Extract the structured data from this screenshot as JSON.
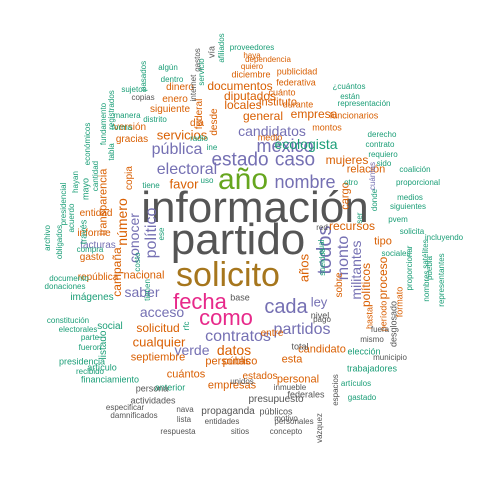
{
  "palette": [
    "#1b9e77",
    "#d95f02",
    "#7570b3",
    "#e7298a",
    "#66a61e",
    "#a6761d",
    "#555555"
  ],
  "words": [
    "información",
    "partido",
    "solicito",
    "año",
    "fecha",
    "como",
    "cada",
    "méxico",
    "estado",
    "caso",
    "nombre",
    "pública",
    "electoral",
    "candidatos",
    "contratos",
    "partidos",
    "verde",
    "datos",
    "todos",
    "monto",
    "militantes",
    "acceso",
    "saber",
    "político",
    "conocer",
    "número",
    "cualquier",
    "solicitud",
    "ecologista",
    "servicios",
    "mujeres",
    "ley",
    "años",
    "favor",
    "recursos",
    "proceso",
    "políticos",
    "documentos",
    "diputados",
    "empresa",
    "general",
    "locales",
    "instituto",
    "campaña",
    "transparencia",
    "nacional",
    "septiembre",
    "personas",
    "candidato",
    "cargo",
    "tipo",
    "relación",
    "público",
    "empresas",
    "cuántos",
    "esta",
    "personal",
    "presupuesto",
    "propaganda",
    "gastos",
    "federal",
    "desde",
    "siguiente",
    "enero",
    "dinero",
    "día",
    "gracias",
    "versión",
    "copia",
    "entidad",
    "informe",
    "facturas",
    "gasto",
    "república",
    "imágenes",
    "social",
    "listado",
    "artículo",
    "anterior",
    "estados",
    "entre",
    "medio",
    "montos",
    "diciembre",
    "publicidad",
    "federativa",
    "cuánto",
    "durante",
    "funcionarios",
    "representación",
    "proveedores",
    "dependencia",
    "haya",
    "quiero",
    "vía",
    "base",
    "nivel",
    "total",
    "pago",
    "red",
    "sobre",
    "hasta",
    "período",
    "formato",
    "fuera",
    "mismo",
    "desglosado",
    "elección",
    "municipio",
    "trabajadores",
    "artículos",
    "gastado",
    "federales",
    "públicos",
    "personales",
    "entidades",
    "respuesta",
    "sitios",
    "concepto",
    "vázquez",
    "espacios",
    "actividades",
    "damnificados",
    "especificar",
    "nava",
    "lista",
    "persona",
    "financiamiento",
    "recibido",
    "presidencia",
    "fueron",
    "parte",
    "electorales",
    "constitución",
    "donaciones",
    "documento",
    "archivo",
    "obligados",
    "acuerdo",
    "presidencial",
    "través",
    "mayo",
    "hayan",
    "compra",
    "manera",
    "forma",
    "sujetos",
    "económicos",
    "fundamento",
    "registrados",
    "cantidad",
    "tabla",
    "distrito",
    "radio",
    "ine",
    "uso",
    "otro",
    "donde",
    "ser",
    "nombres",
    "proporcional",
    "coalición",
    "medios",
    "siguientes",
    "pvem",
    "satélites",
    "puebla",
    "representantes",
    "proporcionar",
    "incluyendo",
    "solicita",
    "sociales",
    "contrato",
    "derecho",
    "sido",
    "requiero",
    "¿cuántos",
    "están",
    "cuántas",
    "algún",
    "dentro",
    "pasados",
    "servicio",
    "afiliados",
    "internet",
    "copias",
    "tiene",
    "ese",
    "tienen",
    "rfc",
    "costo",
    "cual",
    "unidos",
    "inmueble",
    "motivo",
    "sueldos"
  ]
}
